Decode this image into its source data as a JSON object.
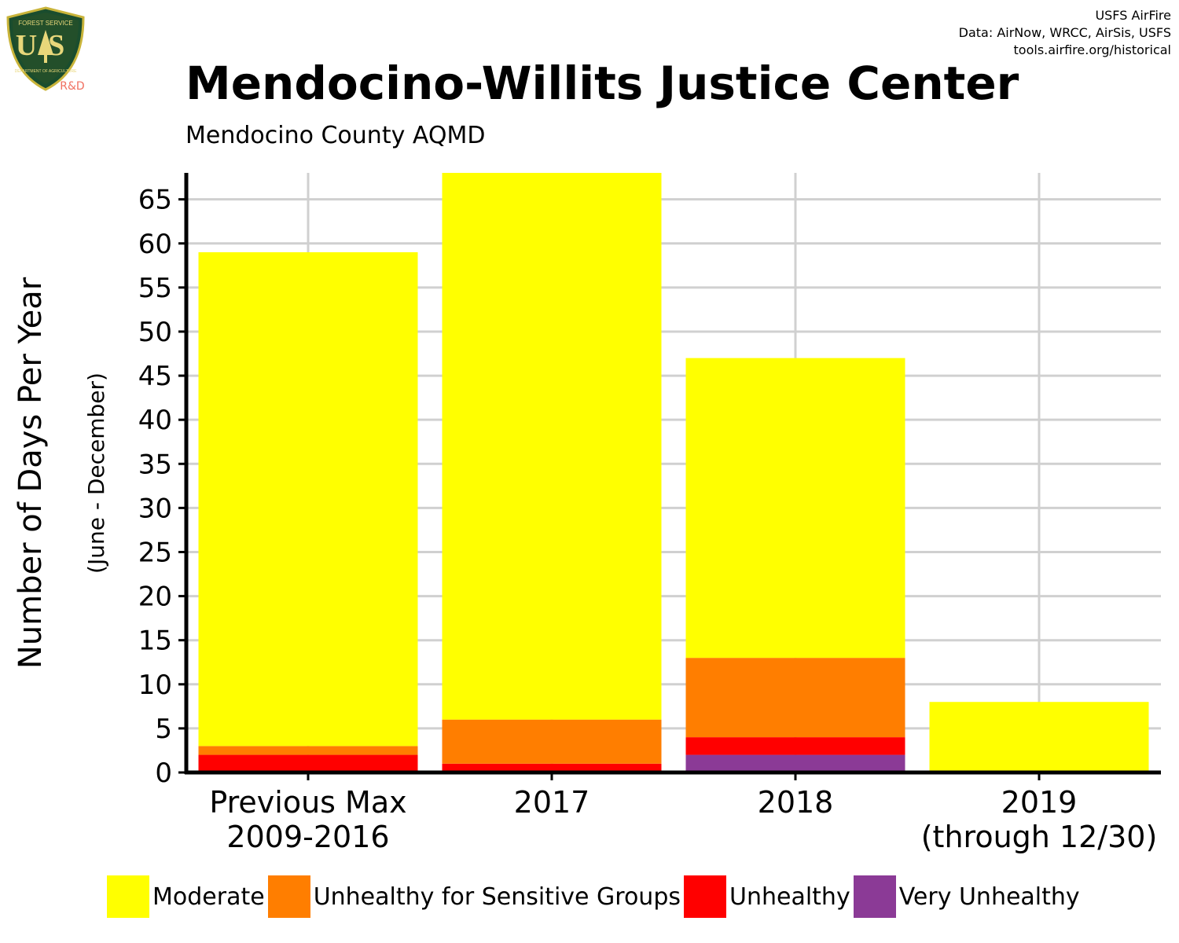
{
  "header": {
    "title": "Mendocino-Willits Justice Center",
    "subtitle": "Mendocino County AQMD",
    "credit_line1": "USFS AirFire",
    "credit_line2": "Data: AirNow, WRCC, AirSis, USFS",
    "credit_line3": "tools.airfire.org/historical",
    "logo_text_top": "FOREST SERVICE",
    "logo_text_main": "US",
    "logo_text_bottom": "DEPARTMENT OF AGRICULTURE",
    "logo_badge": "R&D"
  },
  "chart_data": {
    "type": "bar",
    "stacked": true,
    "title": "Mendocino-Willits Justice Center",
    "subtitle": "Mendocino County AQMD",
    "ylabel": "Number of Days Per Year",
    "ylabel_secondary": "(June - December)",
    "xlabel": "",
    "categories": [
      [
        "Previous Max",
        "2009-2016"
      ],
      [
        "2017"
      ],
      [
        "2018"
      ],
      [
        "2019",
        "(through 12/30)"
      ]
    ],
    "ylim": [
      0,
      68
    ],
    "yticks": [
      0,
      5,
      10,
      15,
      20,
      25,
      30,
      35,
      40,
      45,
      50,
      55,
      60,
      65
    ],
    "grid": true,
    "legend_position": "bottom",
    "series": [
      {
        "name": "Very Unhealthy",
        "color": "#8B3A96",
        "values": [
          0,
          0,
          2,
          0
        ]
      },
      {
        "name": "Unhealthy",
        "color": "#FF0000",
        "values": [
          2,
          1,
          2,
          0
        ]
      },
      {
        "name": "Unhealthy for Sensitive Groups",
        "color": "#FF7E00",
        "values": [
          1,
          5,
          9,
          0
        ]
      },
      {
        "name": "Moderate",
        "color": "#FFFF00",
        "values": [
          56,
          62,
          34,
          8
        ]
      }
    ],
    "legend_order": [
      "Moderate",
      "Unhealthy for Sensitive Groups",
      "Unhealthy",
      "Very Unhealthy"
    ]
  }
}
